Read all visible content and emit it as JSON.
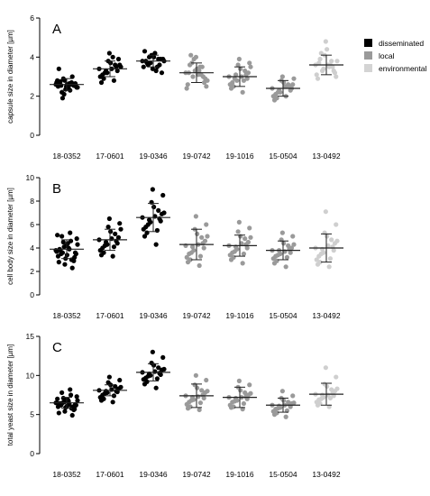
{
  "chart_data": [
    {
      "type": "scatter",
      "panel_label": "A",
      "ylabel": "capsule size in diameter [µm]",
      "ylim": [
        0,
        6
      ],
      "yticks": [
        0,
        2,
        4,
        6
      ],
      "categories": [
        "18-0352",
        "17-0601",
        "19-0346",
        "19-0742",
        "19-1016",
        "15-0504",
        "13-0492"
      ],
      "groups": [
        "disseminated",
        "disseminated",
        "disseminated",
        "local",
        "local",
        "local",
        "environmental"
      ],
      "series": [
        {
          "values": [
            2.6,
            2.55,
            2.5,
            2.7,
            2.45,
            2.6,
            2.8,
            2.3,
            2.65,
            2.5,
            2.9,
            2.4,
            2.55,
            2.7,
            2.2,
            2.6,
            3.0,
            2.45,
            2.75,
            2.35,
            2.6,
            2.5,
            3.4,
            2.1,
            2.65,
            2.55,
            2.8,
            1.9,
            2.4,
            2.6
          ],
          "mean": 2.6,
          "sd": 0.3
        },
        {
          "values": [
            3.4,
            3.2,
            3.6,
            3.0,
            3.8,
            3.5,
            2.7,
            4.2,
            3.3,
            3.1,
            3.7,
            3.9,
            2.9,
            3.4,
            3.6,
            3.2,
            4.0,
            3.5,
            3.3,
            2.8
          ],
          "mean": 3.4,
          "sd": 0.4
        },
        {
          "values": [
            3.8,
            3.7,
            3.9,
            3.5,
            4.1,
            3.6,
            4.3,
            3.4,
            3.9,
            3.8,
            4.0,
            3.2,
            3.7,
            4.2,
            3.9,
            3.6,
            3.3,
            3.8,
            4.0,
            3.5
          ],
          "mean": 3.8,
          "sd": 0.3
        },
        {
          "values": [
            3.2,
            3.0,
            3.5,
            2.8,
            3.7,
            3.3,
            2.5,
            4.1,
            3.1,
            2.9,
            3.6,
            3.4,
            2.7,
            3.2,
            4.0,
            3.0,
            2.6,
            3.3,
            3.5,
            2.4,
            3.9,
            3.1
          ],
          "mean": 3.2,
          "sd": 0.5
        },
        {
          "values": [
            3.0,
            2.8,
            3.3,
            2.6,
            3.6,
            3.1,
            2.4,
            3.9,
            2.9,
            2.7,
            3.4,
            3.2,
            2.5,
            3.0,
            3.7,
            2.9,
            2.2,
            3.5,
            3.1,
            2.8
          ],
          "mean": 3.0,
          "sd": 0.5
        },
        {
          "values": [
            2.4,
            2.2,
            2.6,
            2.0,
            2.8,
            2.5,
            1.8,
            3.0,
            2.3,
            2.1,
            2.7,
            2.4,
            1.9,
            2.5,
            2.6,
            2.2,
            2.0,
            2.9,
            2.3,
            2.5
          ],
          "mean": 2.4,
          "sd": 0.4
        },
        {
          "values": [
            3.6,
            3.4,
            3.8,
            3.1,
            4.1,
            3.5,
            2.9,
            4.8,
            3.3,
            3.7,
            4.4,
            3.2,
            3.9,
            3.6,
            3.0,
            4.2,
            3.5,
            3.8,
            3.3,
            3.6
          ],
          "mean": 3.6,
          "sd": 0.5
        }
      ]
    },
    {
      "type": "scatter",
      "panel_label": "B",
      "ylabel": "cell body size in diameter [µm]",
      "ylim": [
        0,
        10
      ],
      "yticks": [
        0,
        2,
        4,
        6,
        8,
        10
      ],
      "categories": [
        "18-0352",
        "17-0601",
        "19-0346",
        "19-0742",
        "19-1016",
        "15-0504",
        "13-0492"
      ],
      "groups": [
        "disseminated",
        "disseminated",
        "disseminated",
        "local",
        "local",
        "local",
        "environmental"
      ],
      "series": [
        {
          "values": [
            3.8,
            3.5,
            4.2,
            3.0,
            4.8,
            3.9,
            2.6,
            5.3,
            3.6,
            3.3,
            4.5,
            4.0,
            2.9,
            3.7,
            5.0,
            3.4,
            2.3,
            4.3,
            3.8,
            3.1,
            4.6,
            3.5,
            2.8,
            4.1,
            3.9,
            3.2,
            5.1,
            3.6,
            4.4,
            3.0
          ],
          "mean": 3.9,
          "sd": 0.8
        },
        {
          "values": [
            4.7,
            4.3,
            5.2,
            3.8,
            5.8,
            4.6,
            3.4,
            6.5,
            4.4,
            4.0,
            5.4,
            4.9,
            3.6,
            4.8,
            6.1,
            4.2,
            3.3,
            5.6,
            4.5,
            4.1
          ],
          "mean": 4.7,
          "sd": 0.9
        },
        {
          "values": [
            6.6,
            6.2,
            7.2,
            5.6,
            7.9,
            6.5,
            5.0,
            9.0,
            6.3,
            5.8,
            7.5,
            6.9,
            5.3,
            6.7,
            8.5,
            6.0,
            4.3,
            7.0,
            6.4,
            5.5
          ],
          "mean": 6.6,
          "sd": 1.2
        },
        {
          "values": [
            4.2,
            3.8,
            4.9,
            3.2,
            5.6,
            4.4,
            2.8,
            6.7,
            4.0,
            3.5,
            5.2,
            4.6,
            3.0,
            4.3,
            6.0,
            3.6,
            2.5,
            5.0,
            4.1,
            3.3
          ],
          "mean": 4.3,
          "sd": 1.3
        },
        {
          "values": [
            4.2,
            3.9,
            4.8,
            3.4,
            5.4,
            4.3,
            3.0,
            6.2,
            4.0,
            3.6,
            5.0,
            4.5,
            3.2,
            4.4,
            5.7,
            3.7,
            2.7,
            4.9,
            4.1,
            3.5
          ],
          "mean": 4.2,
          "sd": 0.9
        },
        {
          "values": [
            3.8,
            3.5,
            4.2,
            3.1,
            4.7,
            3.9,
            2.7,
            5.3,
            3.6,
            3.3,
            4.4,
            4.0,
            2.9,
            3.7,
            5.0,
            3.4,
            2.4,
            4.3,
            3.8,
            3.2
          ],
          "mean": 3.8,
          "sd": 0.8
        },
        {
          "values": [
            4.0,
            3.6,
            4.7,
            3.0,
            5.3,
            4.1,
            2.6,
            7.1,
            3.8,
            3.3,
            5.0,
            4.4,
            2.8,
            4.2,
            6.0,
            3.5,
            2.4,
            4.6,
            3.9,
            3.1
          ],
          "mean": 4.0,
          "sd": 1.2
        }
      ]
    },
    {
      "type": "scatter",
      "panel_label": "C",
      "ylabel": "total yeast size in diameter [µm]",
      "ylim": [
        0,
        15
      ],
      "yticks": [
        0,
        5,
        10,
        15
      ],
      "categories": [
        "18-0352",
        "17-0601",
        "19-0346",
        "19-0742",
        "19-1016",
        "15-0504",
        "13-0492"
      ],
      "groups": [
        "disseminated",
        "disseminated",
        "disseminated",
        "local",
        "local",
        "local",
        "environmental"
      ],
      "series": [
        {
          "values": [
            6.5,
            6.2,
            6.9,
            5.8,
            7.3,
            6.4,
            5.4,
            8.2,
            6.3,
            6.0,
            7.1,
            6.7,
            5.6,
            6.5,
            7.8,
            6.1,
            4.9,
            6.8,
            6.4,
            5.9,
            7.5,
            6.2,
            5.2,
            6.6,
            6.3,
            5.7,
            7.0,
            6.5,
            6.9,
            6.0
          ],
          "mean": 6.5,
          "sd": 0.7
        },
        {
          "values": [
            8.1,
            7.8,
            8.6,
            7.2,
            9.1,
            8.0,
            6.8,
            9.8,
            7.9,
            7.5,
            8.8,
            8.3,
            7.0,
            8.2,
            9.4,
            7.7,
            6.6,
            8.5,
            8.0,
            7.4
          ],
          "mean": 8.1,
          "sd": 0.7
        },
        {
          "values": [
            10.4,
            10.0,
            11.0,
            9.5,
            11.6,
            10.3,
            8.9,
            13.0,
            10.1,
            9.7,
            11.3,
            10.7,
            9.2,
            10.5,
            12.3,
            9.9,
            8.4,
            10.8,
            10.2,
            9.6
          ],
          "mean": 10.4,
          "sd": 1.1
        },
        {
          "values": [
            7.4,
            6.9,
            8.1,
            6.3,
            8.8,
            7.5,
            5.8,
            10.0,
            7.1,
            6.6,
            8.4,
            7.8,
            6.0,
            7.3,
            9.4,
            6.8,
            5.6,
            8.0,
            7.2,
            6.5
          ],
          "mean": 7.4,
          "sd": 1.5
        },
        {
          "values": [
            7.2,
            6.8,
            7.8,
            6.2,
            8.5,
            7.3,
            5.9,
            9.3,
            7.0,
            6.6,
            8.1,
            7.5,
            6.0,
            7.2,
            8.8,
            6.7,
            5.7,
            7.7,
            7.1,
            6.4
          ],
          "mean": 7.2,
          "sd": 1.3
        },
        {
          "values": [
            6.2,
            5.9,
            6.6,
            5.4,
            7.1,
            6.3,
            5.0,
            8.0,
            6.0,
            5.7,
            6.8,
            6.4,
            5.2,
            6.2,
            7.4,
            5.8,
            4.7,
            6.5,
            6.1,
            5.5
          ],
          "mean": 6.2,
          "sd": 0.9
        },
        {
          "values": [
            7.6,
            7.2,
            8.2,
            6.6,
            8.9,
            7.7,
            6.2,
            11.0,
            7.4,
            6.9,
            8.6,
            8.0,
            6.4,
            7.5,
            9.8,
            7.0,
            6.0,
            8.3,
            7.5,
            7.1
          ],
          "mean": 7.6,
          "sd": 1.4
        }
      ]
    }
  ],
  "legend": {
    "placement": "top-right",
    "items": [
      {
        "label": "disseminated",
        "color": "#000000"
      },
      {
        "label": "local",
        "color": "#9a9a9a"
      },
      {
        "label": "environmental",
        "color": "#d4d4d4"
      }
    ]
  },
  "colors": {
    "disseminated": "#000000",
    "local": "#9a9a9a",
    "environmental": "#cfcfcf"
  }
}
